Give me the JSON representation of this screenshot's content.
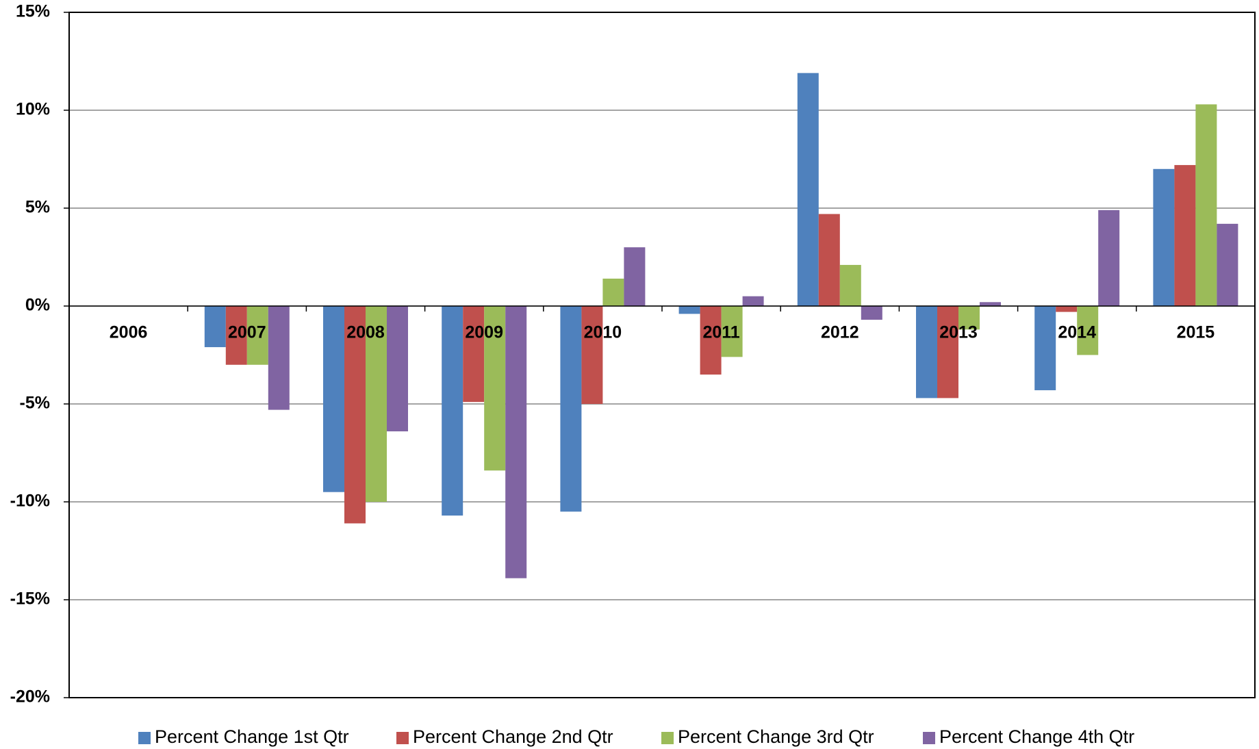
{
  "chart_data": {
    "type": "bar",
    "categories": [
      "2006",
      "2007",
      "2008",
      "2009",
      "2010",
      "2011",
      "2012",
      "2013",
      "2014",
      "2015"
    ],
    "series": [
      {
        "name": "Percent Change 1st Qtr",
        "color": "#4f81bd",
        "values": [
          0,
          -2.1,
          -9.5,
          -10.7,
          -10.5,
          -0.4,
          11.9,
          -4.7,
          -4.3,
          7.0
        ]
      },
      {
        "name": "Percent Change 2nd Qtr",
        "color": "#c0504d",
        "values": [
          0,
          -3.0,
          -11.1,
          -4.9,
          -5.0,
          -3.5,
          4.7,
          -4.7,
          -0.3,
          7.2
        ]
      },
      {
        "name": "Percent Change 3rd Qtr",
        "color": "#9bbb59",
        "values": [
          0,
          -3.0,
          -10.0,
          -8.4,
          1.4,
          -2.6,
          2.1,
          -1.2,
          -2.5,
          10.3
        ]
      },
      {
        "name": "Percent Change 4th Qtr",
        "color": "#8064a2",
        "values": [
          0,
          -5.3,
          -6.4,
          -13.9,
          3.0,
          0.5,
          -0.7,
          0.2,
          4.9,
          4.2
        ]
      }
    ],
    "ylim": [
      -20,
      15
    ],
    "yticks": [
      {
        "value": -20,
        "label": "-20%"
      },
      {
        "value": -15,
        "label": "-15%"
      },
      {
        "value": -10,
        "label": "-10%"
      },
      {
        "value": -5,
        "label": "-5%"
      },
      {
        "value": 0,
        "label": "0%"
      },
      {
        "value": 5,
        "label": "5%"
      },
      {
        "value": 10,
        "label": "10%"
      },
      {
        "value": 15,
        "label": "15%"
      }
    ],
    "grid": true,
    "legend": "bottom"
  }
}
